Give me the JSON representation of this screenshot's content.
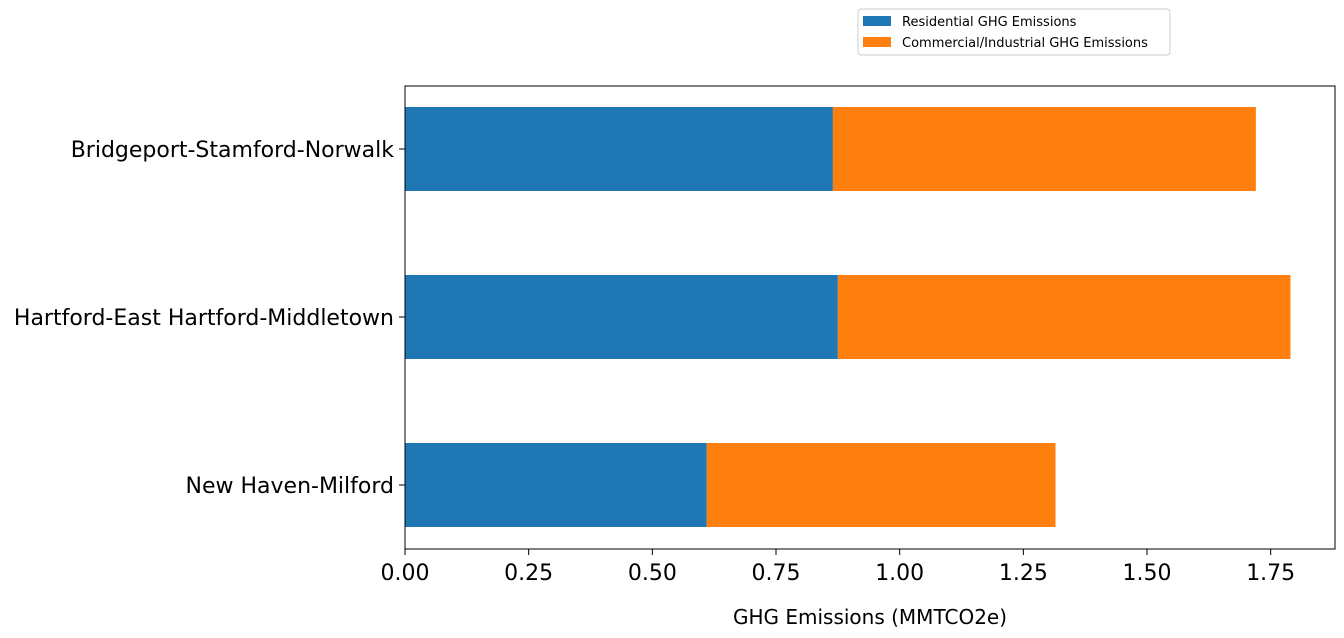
{
  "chart_data": {
    "type": "bar",
    "orientation": "horizontal",
    "stacked": true,
    "categories": [
      "New Haven-Milford",
      "Hartford-East Hartford-Middletown",
      "Bridgeport-Stamford-Norwalk"
    ],
    "series": [
      {
        "name": "Residential GHG Emissions",
        "color": "#1f77b4",
        "values": [
          0.61,
          0.875,
          0.865
        ]
      },
      {
        "name": "Commercial/Industrial GHG Emissions",
        "color": "#ff7f0e",
        "values": [
          0.705,
          0.915,
          0.855
        ]
      }
    ],
    "title": "",
    "xlabel": "GHG Emissions (MMTCO2e)",
    "ylabel": "",
    "xlim": [
      0,
      1.88
    ],
    "xticks": [
      0.0,
      0.25,
      0.5,
      0.75,
      1.0,
      1.25,
      1.5,
      1.75
    ],
    "xtick_labels": [
      "0.00",
      "0.25",
      "0.50",
      "0.75",
      "1.00",
      "1.25",
      "1.50",
      "1.75"
    ],
    "grid": false,
    "legend_position": "top-right"
  }
}
